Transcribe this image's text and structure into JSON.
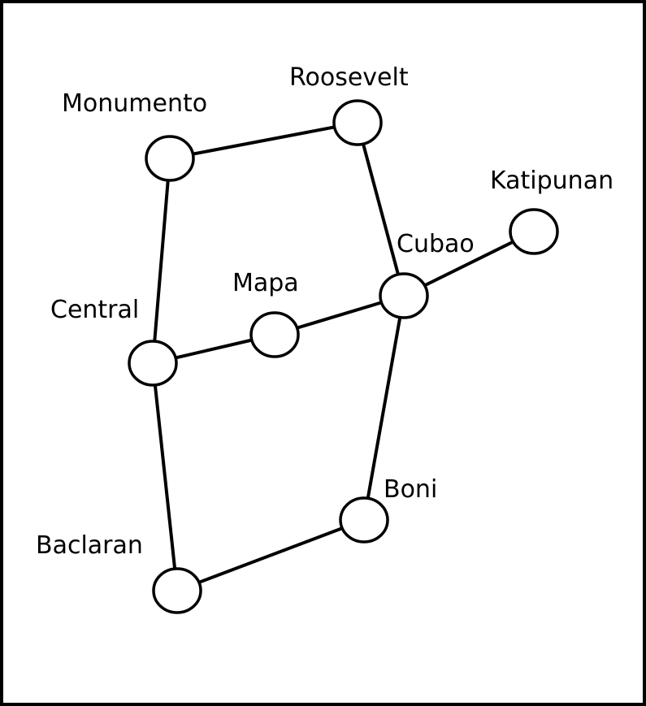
{
  "diagram": {
    "type": "undirected-graph",
    "colors": {
      "stroke": "#000000",
      "node_fill": "#ffffff",
      "background": "#ffffff"
    },
    "nodes": [
      {
        "id": "monumento",
        "label": "Monumento"
      },
      {
        "id": "roosevelt",
        "label": "Roosevelt"
      },
      {
        "id": "katipunan",
        "label": "Katipunan"
      },
      {
        "id": "cubao",
        "label": "Cubao"
      },
      {
        "id": "mapa",
        "label": "Mapa"
      },
      {
        "id": "central",
        "label": "Central"
      },
      {
        "id": "boni",
        "label": "Boni"
      },
      {
        "id": "baclaran",
        "label": "Baclaran"
      }
    ],
    "edges": [
      {
        "from": "monumento",
        "to": "roosevelt"
      },
      {
        "from": "monumento",
        "to": "central"
      },
      {
        "from": "roosevelt",
        "to": "cubao"
      },
      {
        "from": "cubao",
        "to": "katipunan"
      },
      {
        "from": "cubao",
        "to": "mapa"
      },
      {
        "from": "mapa",
        "to": "central"
      },
      {
        "from": "cubao",
        "to": "boni"
      },
      {
        "from": "central",
        "to": "baclaran"
      },
      {
        "from": "baclaran",
        "to": "boni"
      }
    ]
  }
}
